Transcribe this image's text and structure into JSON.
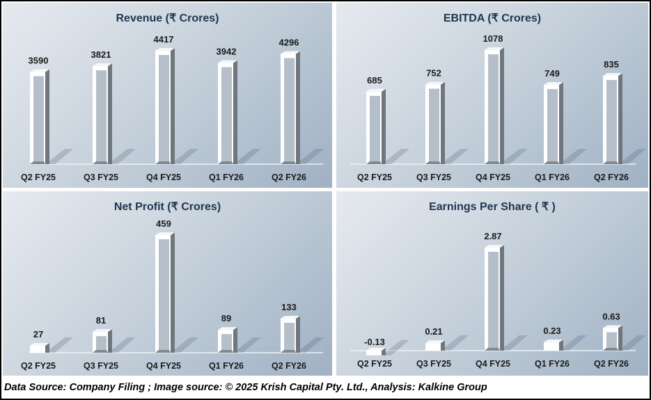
{
  "chart_data": [
    {
      "id": "revenue",
      "type": "bar",
      "title": "Revenue (₹ Crores)",
      "categories": [
        "Q2 FY25",
        "Q3 FY25",
        "Q4 FY25",
        "Q1 FY26",
        "Q2 FY26"
      ],
      "values": [
        3590,
        3821,
        4417,
        3942,
        4296
      ],
      "labels": [
        "3590",
        "3821",
        "4417",
        "3942",
        "4296"
      ],
      "xlabel": "",
      "ylabel": "",
      "grid": false
    },
    {
      "id": "ebitda",
      "type": "bar",
      "title": "EBITDA (₹ Crores)",
      "categories": [
        "Q2 FY25",
        "Q3 FY25",
        "Q4 FY25",
        "Q1 FY26",
        "Q2 FY26"
      ],
      "values": [
        685,
        752,
        1078,
        749,
        835
      ],
      "labels": [
        "685",
        "752",
        "1078",
        "749",
        "835"
      ],
      "xlabel": "",
      "ylabel": "",
      "grid": false
    },
    {
      "id": "net-profit",
      "type": "bar",
      "title": "Net Profit  (₹ Crores)",
      "categories": [
        "Q2 FY25",
        "Q3 FY25",
        "Q4 FY25",
        "Q1 FY26",
        "Q2 FY26"
      ],
      "values": [
        27,
        81,
        459,
        89,
        133
      ],
      "labels": [
        "27",
        "81",
        "459",
        "89",
        "133"
      ],
      "xlabel": "",
      "ylabel": "",
      "grid": false
    },
    {
      "id": "eps",
      "type": "bar",
      "title": "Earnings Per Share  ( ₹ )",
      "categories": [
        "Q2 FY25",
        "Q3 FY25",
        "Q4 FY25",
        "Q1 FY26",
        "Q2 FY26"
      ],
      "values": [
        -0.13,
        0.21,
        2.87,
        0.23,
        0.63
      ],
      "labels": [
        "-0.13",
        "0.21",
        "2.87",
        "0.23",
        "0.63"
      ],
      "xlabel": "",
      "ylabel": "",
      "grid": false
    }
  ],
  "footer": "Data Source: Company Filing ; Image source: © 2025 Krish Capital Pty. Ltd., Analysis: Kalkine Group"
}
